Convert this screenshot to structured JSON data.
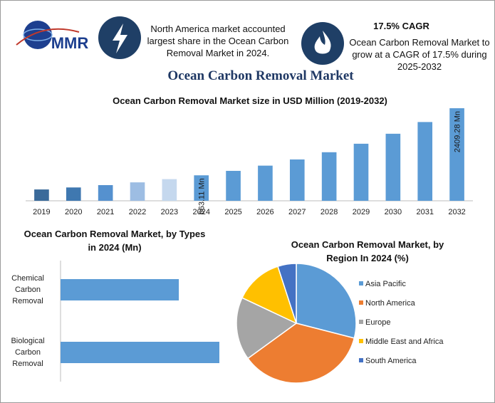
{
  "header": {
    "logo": "MMR",
    "share_note": "North America market accounted largest share in the Ocean Carbon Removal Market in 2024.",
    "cagr_title": "17.5% CAGR",
    "cagr_note": "Ocean Carbon Removal Market to grow at a CAGR of 17.5% during 2025-2032",
    "title": "Ocean Carbon Removal Market"
  },
  "chart_data": [
    {
      "type": "bar",
      "title": "Ocean Carbon Removal Market size in USD Million (2019-2032)",
      "categories": [
        "2019",
        "2020",
        "2021",
        "2022",
        "2023",
        "2024",
        "2025",
        "2026",
        "2027",
        "2028",
        "2029",
        "2030",
        "2031",
        "2032"
      ],
      "values": [
        295,
        347,
        408,
        480,
        564,
        663.11,
        779,
        915,
        1076,
        1264,
        1485,
        1745,
        2050,
        2409.28
      ],
      "value_labels": [
        null,
        null,
        null,
        null,
        null,
        "663.11 Mn",
        null,
        null,
        null,
        null,
        null,
        null,
        null,
        "2409.28 Mn"
      ],
      "colors": [
        "#3a6a9a",
        "#3f78b0",
        "#5591cf",
        "#9dbde3",
        "#c5d8ee",
        "#5b9bd5",
        "#5b9bd5",
        "#5b9bd5",
        "#5b9bd5",
        "#5b9bd5",
        "#5b9bd5",
        "#5b9bd5",
        "#5b9bd5",
        "#5b9bd5"
      ]
    },
    {
      "type": "bar",
      "orientation": "horizontal",
      "title": "Ocean Carbon Removal Market, by Types in 2024 (Mn)",
      "categories": [
        "Chemical Carbon Removal",
        "Biological Carbon Removal"
      ],
      "values": [
        283,
        380
      ],
      "color": "#5b9bd5"
    },
    {
      "type": "pie",
      "title": "Ocean Carbon Removal Market, by Region In 2024 (%)",
      "categories": [
        "Asia Pacific",
        "North America",
        "Europe",
        "Middle East and Africa",
        "South America"
      ],
      "values": [
        29,
        36,
        17,
        13,
        5
      ],
      "colors": [
        "#5b9bd5",
        "#ed7d31",
        "#a5a5a5",
        "#ffc000",
        "#4472c4"
      ],
      "legend": "right"
    }
  ]
}
